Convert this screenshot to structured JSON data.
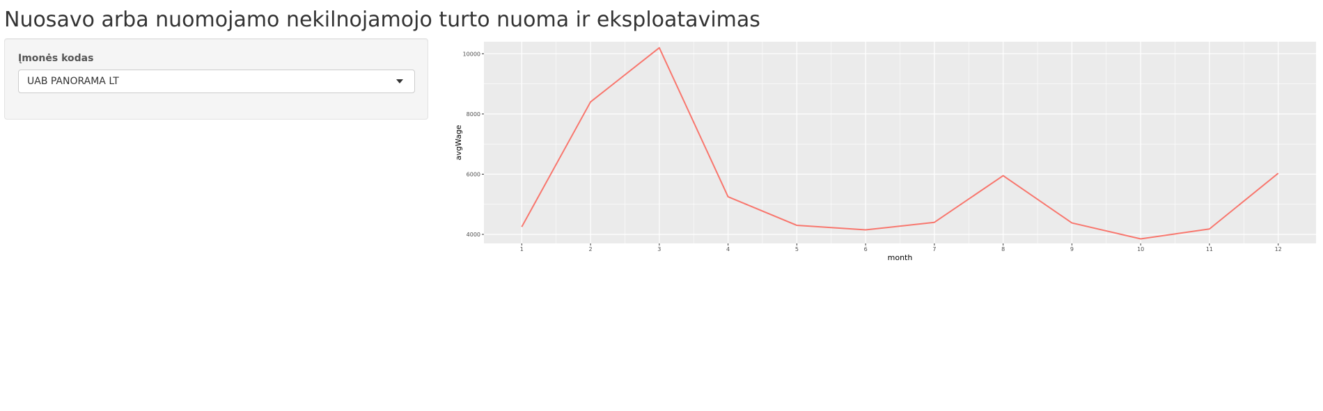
{
  "page": {
    "title": "Nuosavo arba nuomojamo nekilnojamojo turto nuoma ir eksploatavimas"
  },
  "sidebar": {
    "field_label": "Įmonės kodas",
    "select": {
      "selected": "UAB PANORAMA LT",
      "icon": "caret-down-icon"
    }
  },
  "chart_data": {
    "type": "line",
    "xlabel": "month",
    "ylabel": "avgWage",
    "x": [
      1,
      2,
      3,
      4,
      5,
      6,
      7,
      8,
      9,
      10,
      11,
      12
    ],
    "series": [
      {
        "color": "#f8766d",
        "values": [
          4250,
          8400,
          10200,
          5250,
          4300,
          4150,
          4400,
          5950,
          4380,
          3850,
          4180,
          6030
        ]
      }
    ],
    "xlim": [
      0.45,
      12.55
    ],
    "ylim": [
      3700,
      10400
    ],
    "yticks": [
      4000,
      6000,
      8000,
      10000
    ],
    "xticks": [
      1,
      2,
      3,
      4,
      5,
      6,
      7,
      8,
      9,
      10,
      11,
      12
    ],
    "grid": true,
    "panel_background": "#ebebeb",
    "grid_color": "#ffffff"
  }
}
